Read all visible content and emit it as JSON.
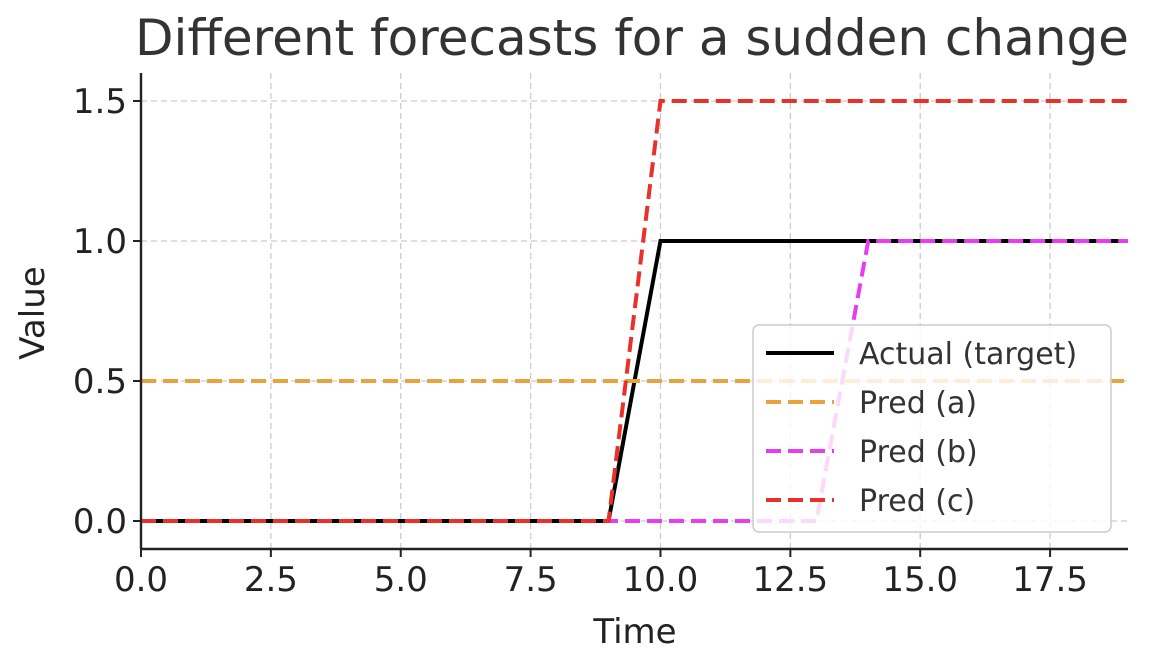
{
  "chart_data": {
    "type": "line",
    "title": "Different forecasts for a sudden change",
    "xlabel": "Time",
    "ylabel": "Value",
    "xlim": [
      0,
      19
    ],
    "ylim": [
      -0.1,
      1.6
    ],
    "x_ticks": [
      "0.0",
      "2.5",
      "5.0",
      "7.5",
      "10.0",
      "12.5",
      "15.0",
      "17.5"
    ],
    "y_ticks": [
      "0.0",
      "0.5",
      "1.0",
      "1.5"
    ],
    "grid": true,
    "legend_position": "lower-right",
    "series": [
      {
        "name": "Actual (target)",
        "color": "#000000",
        "style": "solid",
        "x": [
          0,
          9,
          10,
          19
        ],
        "y": [
          0,
          0,
          1,
          1
        ]
      },
      {
        "name": "Pred (a)",
        "color": "#e8a33d",
        "style": "dashed",
        "x": [
          0,
          19
        ],
        "y": [
          0.5,
          0.5
        ]
      },
      {
        "name": "Pred (b)",
        "color": "#e83cf0",
        "style": "dashed",
        "x": [
          0,
          13,
          14,
          19
        ],
        "y": [
          0,
          0,
          1,
          1
        ]
      },
      {
        "name": "Pred (c)",
        "color": "#e8312b",
        "style": "dashed",
        "x": [
          0,
          9,
          10,
          19
        ],
        "y": [
          0,
          0,
          1.5,
          1.5
        ]
      }
    ]
  }
}
